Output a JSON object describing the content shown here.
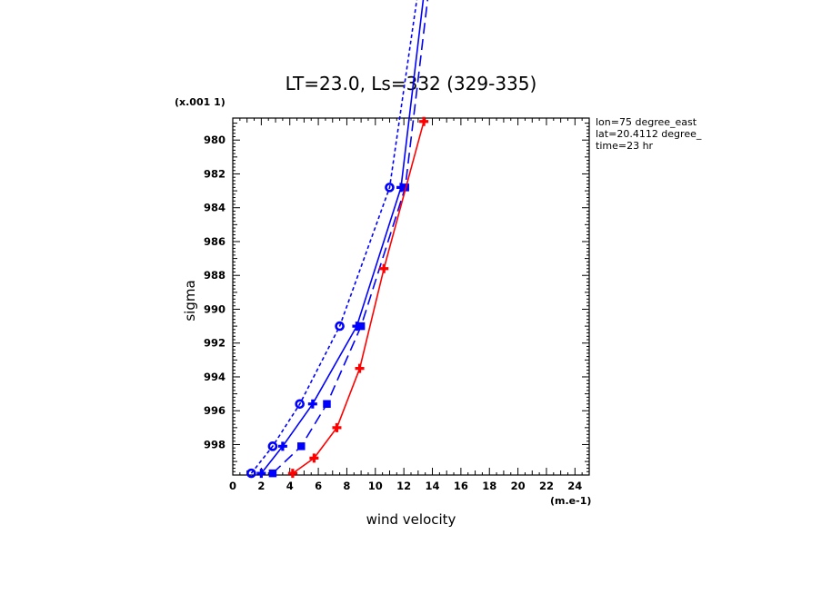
{
  "chart_data": {
    "type": "line",
    "title": "LT=23.0, Ls=332 (329-335)",
    "xlabel": "wind velocity",
    "ylabel": "sigma",
    "x_unit": "(m.e-1)",
    "y_scale_note": "(x.001 1)",
    "xlim": [
      0,
      25
    ],
    "ylim": [
      999.8,
      978.7
    ],
    "xticks": [
      "0",
      "2",
      "4",
      "6",
      "8",
      "10",
      "12",
      "14",
      "16",
      "18",
      "20",
      "22",
      "24"
    ],
    "yticks": [
      "980",
      "982",
      "984",
      "986",
      "988",
      "990",
      "992",
      "994",
      "996",
      "998"
    ],
    "annotations": [
      "lon=75 degree_east",
      "lat=20.4112 degree_",
      "time=23 hr"
    ],
    "grid": false,
    "series": [
      {
        "color": "#0000ff",
        "dash": "short",
        "marker": "circle",
        "points": [
          [
            1.3,
            999.7
          ],
          [
            2.8,
            998.1
          ],
          [
            4.7,
            995.6
          ],
          [
            7.5,
            991.0
          ],
          [
            11.0,
            982.8
          ],
          [
            13.2,
            970
          ]
        ]
      },
      {
        "color": "#0000ff",
        "dash": "solid",
        "marker": "plus",
        "points": [
          [
            2.0,
            999.7
          ],
          [
            3.5,
            998.1
          ],
          [
            5.6,
            995.6
          ],
          [
            8.7,
            991.0
          ],
          [
            11.8,
            982.8
          ],
          [
            13.6,
            970
          ]
        ]
      },
      {
        "color": "#0000ff",
        "dash": "long",
        "marker": "square",
        "points": [
          [
            2.8,
            999.7
          ],
          [
            4.8,
            998.1
          ],
          [
            6.6,
            995.6
          ],
          [
            9.0,
            991.0
          ],
          [
            12.1,
            982.8
          ],
          [
            13.9,
            970
          ]
        ]
      },
      {
        "color": "#ff0000",
        "dash": "solid",
        "marker": "plus",
        "points": [
          [
            4.2,
            999.7
          ],
          [
            5.7,
            998.8
          ],
          [
            7.3,
            997.0
          ],
          [
            8.9,
            993.5
          ],
          [
            10.6,
            987.6
          ],
          [
            13.4,
            978.9
          ]
        ]
      }
    ]
  }
}
